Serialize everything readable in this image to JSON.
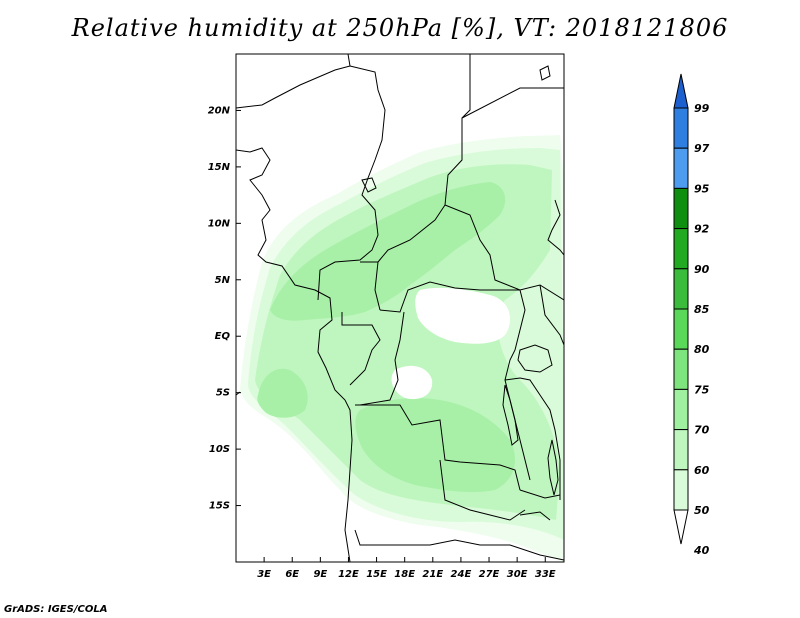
{
  "title": "Relative humidity at 250hPa [%], VT: 2018121806",
  "credit": "GrADS: IGES/COLA",
  "map": {
    "lon_range": [
      0,
      35
    ],
    "lat_range": [
      -20,
      25
    ],
    "lat_labels": [
      "20N",
      "15N",
      "10N",
      "5N",
      "EQ",
      "5S",
      "10S",
      "15S"
    ],
    "lat_values": [
      20,
      15,
      10,
      5,
      0,
      -5,
      -10,
      -15
    ],
    "lon_labels": [
      "3E",
      "6E",
      "9E",
      "12E",
      "15E",
      "18E",
      "21E",
      "24E",
      "27E",
      "30E",
      "33E"
    ],
    "lon_values": [
      3,
      6,
      9,
      12,
      15,
      18,
      21,
      24,
      27,
      30,
      33
    ]
  },
  "colorbar": {
    "levels": [
      "99",
      "97",
      "95",
      "92",
      "90",
      "85",
      "80",
      "75",
      "70",
      "60",
      "50",
      "40"
    ],
    "colors": [
      "#1c5fcf",
      "#2f7fe0",
      "#4d9cf0",
      "#0f8f0f",
      "#22aa22",
      "#3cbc3c",
      "#5ad85a",
      "#7ee57e",
      "#9ff09f",
      "#bff6bf",
      "#d9fbd9",
      "#eefdee"
    ]
  }
}
